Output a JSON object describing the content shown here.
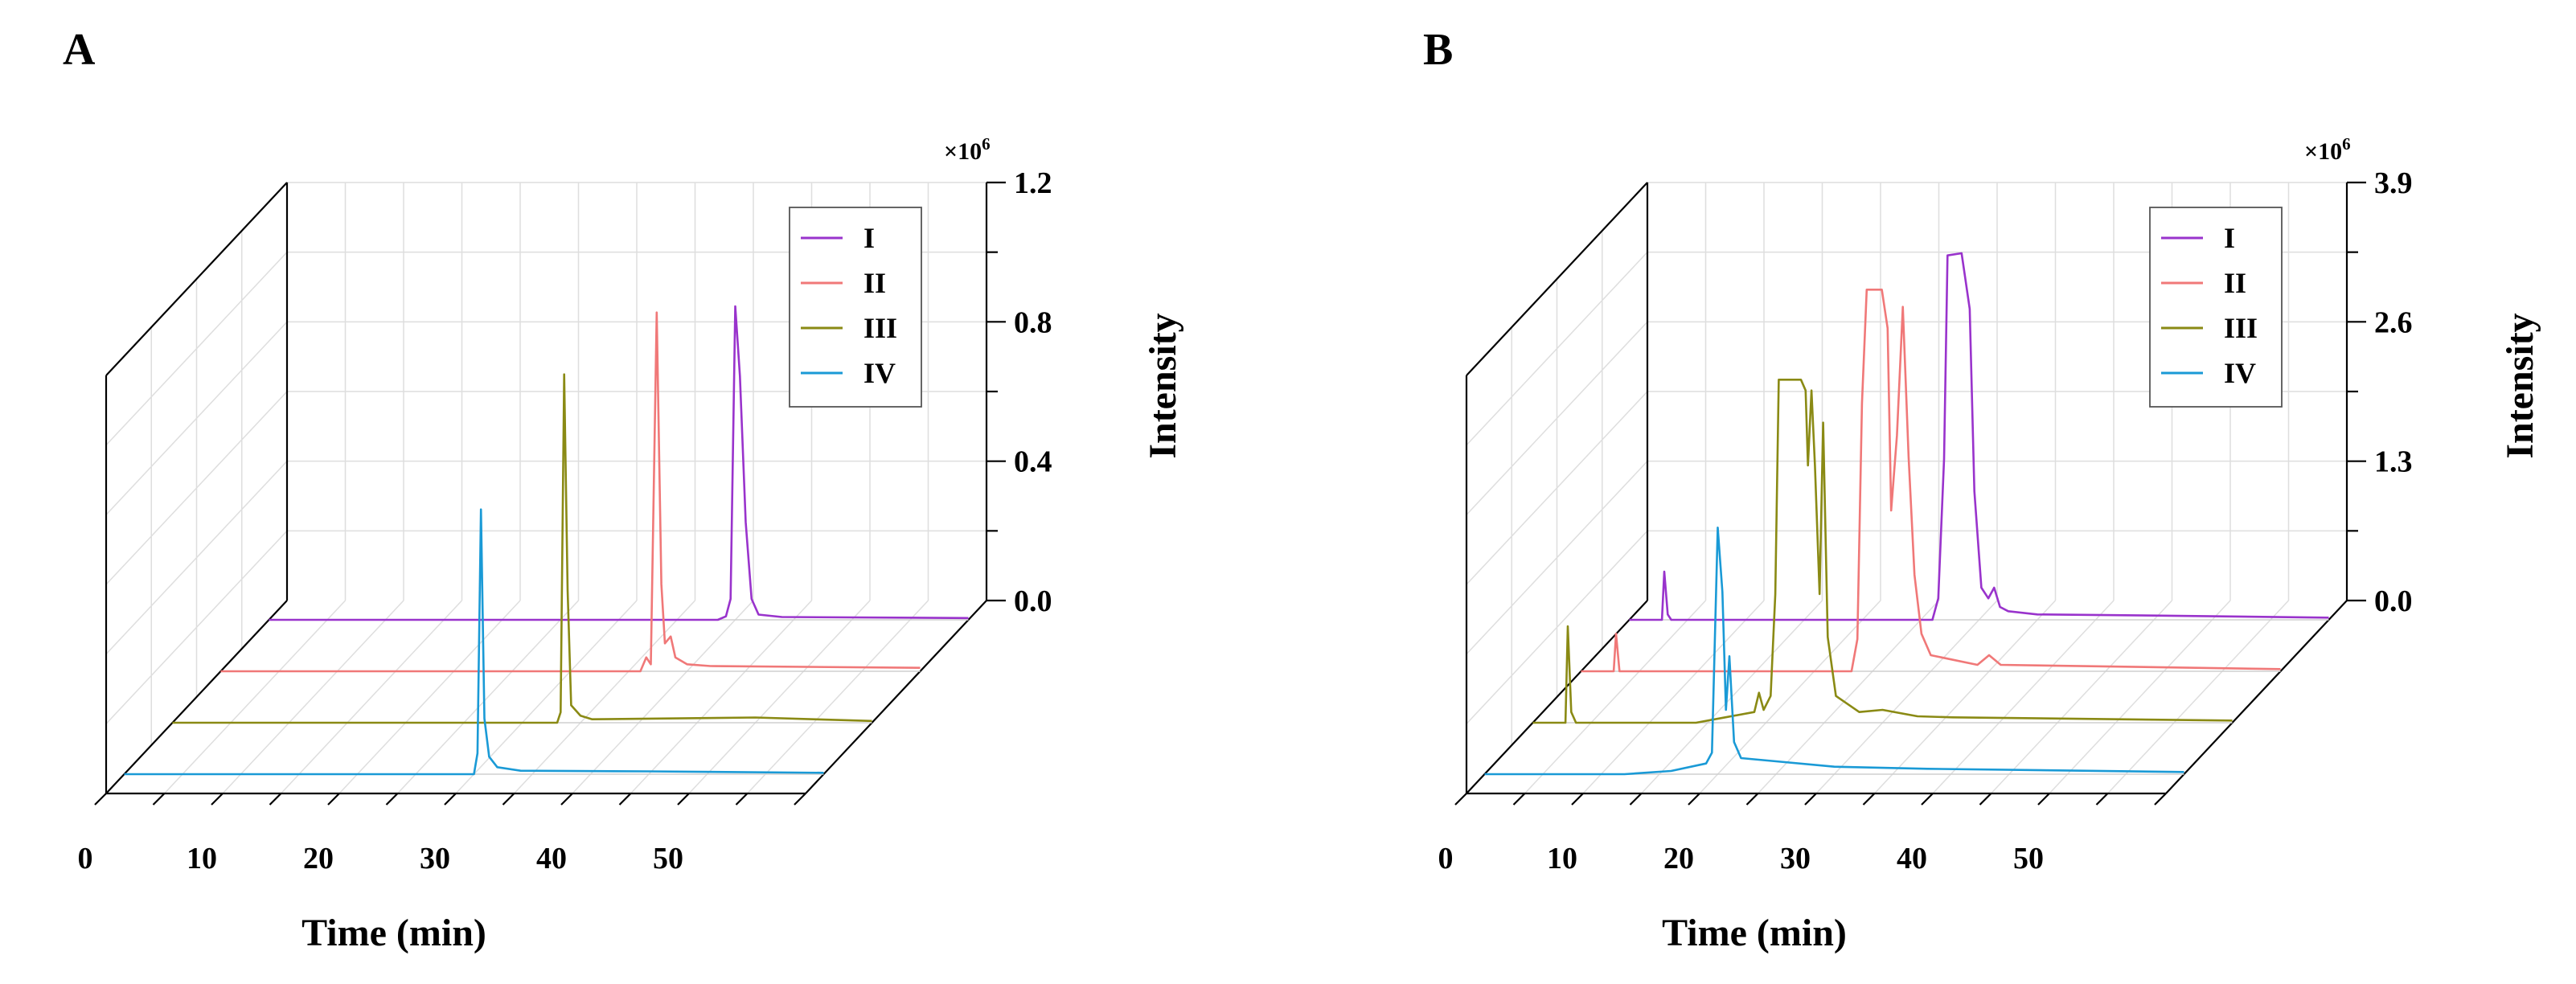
{
  "figure_caption": "",
  "chart_data": [
    {
      "panel": "A",
      "type": "line",
      "style": "3d-waterfall",
      "title": "",
      "xlabel": "Time (min)",
      "ylabel": "Intensity",
      "y_multiplier": "×10",
      "y_multiplier_exp": "6",
      "xlim": [
        0,
        60
      ],
      "ylim": [
        0,
        1.2
      ],
      "x_ticks": [
        "0",
        "10",
        "20",
        "30",
        "40",
        "50"
      ],
      "y_ticks": [
        "0.0",
        "0.4",
        "0.8",
        "1.2"
      ],
      "legend_position": "top-right",
      "series": [
        {
          "name": "I",
          "color": "#9933cc",
          "points": [
            [
              0,
              0
            ],
            [
              38.5,
              0
            ],
            [
              39.2,
              0.01
            ],
            [
              39.6,
              0.06
            ],
            [
              40.0,
              0.9
            ],
            [
              40.4,
              0.7
            ],
            [
              40.9,
              0.28
            ],
            [
              41.4,
              0.06
            ],
            [
              42,
              0.015
            ],
            [
              44,
              0.008
            ],
            [
              60,
              0.005
            ]
          ]
        },
        {
          "name": "II",
          "color": "#f07878",
          "points": [
            [
              0,
              0
            ],
            [
              36,
              0
            ],
            [
              36.5,
              0.04
            ],
            [
              36.9,
              0.02
            ],
            [
              37.4,
              1.03
            ],
            [
              37.8,
              0.25
            ],
            [
              38.1,
              0.08
            ],
            [
              38.6,
              0.1
            ],
            [
              39,
              0.04
            ],
            [
              40,
              0.02
            ],
            [
              42,
              0.015
            ],
            [
              60,
              0.01
            ]
          ]
        },
        {
          "name": "III",
          "color": "#8a8a14",
          "points": [
            [
              0,
              0
            ],
            [
              33,
              0
            ],
            [
              33.3,
              0.03
            ],
            [
              33.6,
              1.0
            ],
            [
              33.9,
              0.38
            ],
            [
              34.2,
              0.05
            ],
            [
              35,
              0.02
            ],
            [
              36,
              0.01
            ],
            [
              50,
              0.015
            ],
            [
              55,
              0.01
            ],
            [
              60,
              0.005
            ]
          ]
        },
        {
          "name": "IV",
          "color": "#1a9ad6",
          "points": [
            [
              0,
              0
            ],
            [
              30,
              0
            ],
            [
              30.3,
              0.06
            ],
            [
              30.6,
              0.76
            ],
            [
              30.9,
              0.16
            ],
            [
              31.3,
              0.05
            ],
            [
              32,
              0.02
            ],
            [
              34,
              0.01
            ],
            [
              45,
              0.008
            ],
            [
              60,
              0.004
            ]
          ]
        }
      ]
    },
    {
      "panel": "B",
      "type": "line",
      "style": "3d-waterfall",
      "title": "",
      "xlabel": "Time (min)",
      "ylabel": "Intensity",
      "y_multiplier": "×10",
      "y_multiplier_exp": "6",
      "xlim": [
        0,
        60
      ],
      "ylim": [
        0,
        3.9
      ],
      "x_ticks": [
        "0",
        "10",
        "20",
        "30",
        "40",
        "50"
      ],
      "y_ticks": [
        "0.0",
        "1.3",
        "2.6",
        "3.9"
      ],
      "legend_position": "top-right",
      "series": [
        {
          "name": "I",
          "color": "#9933cc",
          "points": [
            [
              0,
              0
            ],
            [
              2.8,
              0
            ],
            [
              3.0,
              0.45
            ],
            [
              3.3,
              0.05
            ],
            [
              3.6,
              0
            ],
            [
              26,
              0
            ],
            [
              26.5,
              0.2
            ],
            [
              27,
              1.5
            ],
            [
              27.3,
              3.4
            ],
            [
              28.5,
              3.42
            ],
            [
              28.8,
              3.2
            ],
            [
              29.2,
              2.9
            ],
            [
              29.6,
              1.2
            ],
            [
              30.2,
              0.3
            ],
            [
              30.8,
              0.2
            ],
            [
              31.3,
              0.3
            ],
            [
              31.8,
              0.12
            ],
            [
              32.5,
              0.08
            ],
            [
              35,
              0.05
            ],
            [
              45,
              0.04
            ],
            [
              60,
              0.02
            ]
          ]
        },
        {
          "name": "II",
          "color": "#f07878",
          "points": [
            [
              0,
              0
            ],
            [
              2.8,
              0
            ],
            [
              3.0,
              0.35
            ],
            [
              3.3,
              0
            ],
            [
              23.2,
              0
            ],
            [
              23.7,
              0.3
            ],
            [
              24.1,
              2.5
            ],
            [
              24.5,
              3.56
            ],
            [
              25.8,
              3.56
            ],
            [
              26.3,
              3.2
            ],
            [
              26.6,
              1.5
            ],
            [
              27.1,
              2.2
            ],
            [
              27.6,
              3.4
            ],
            [
              28.1,
              2.0
            ],
            [
              28.6,
              0.9
            ],
            [
              29.2,
              0.35
            ],
            [
              30,
              0.15
            ],
            [
              34,
              0.06
            ],
            [
              35,
              0.15
            ],
            [
              36,
              0.06
            ],
            [
              60,
              0.02
            ]
          ]
        },
        {
          "name": "III",
          "color": "#8a8a14",
          "points": [
            [
              0,
              0
            ],
            [
              2.8,
              0
            ],
            [
              3.0,
              0.9
            ],
            [
              3.3,
              0.1
            ],
            [
              3.7,
              0
            ],
            [
              14,
              0
            ],
            [
              16.5,
              0.05
            ],
            [
              19,
              0.1
            ],
            [
              19.4,
              0.28
            ],
            [
              19.8,
              0.12
            ],
            [
              20.4,
              0.25
            ],
            [
              20.8,
              1.2
            ],
            [
              21.1,
              3.2
            ],
            [
              23.0,
              3.2
            ],
            [
              23.4,
              3.1
            ],
            [
              23.6,
              2.4
            ],
            [
              23.9,
              3.1
            ],
            [
              24.2,
              2.4
            ],
            [
              24.6,
              1.2
            ],
            [
              24.9,
              2.8
            ],
            [
              25.3,
              0.8
            ],
            [
              26,
              0.25
            ],
            [
              28,
              0.1
            ],
            [
              30,
              0.12
            ],
            [
              33,
              0.06
            ],
            [
              36,
              0.05
            ],
            [
              60,
              0.02
            ]
          ]
        },
        {
          "name": "IV",
          "color": "#1a9ad6",
          "points": [
            [
              0,
              0
            ],
            [
              12,
              0
            ],
            [
              16,
              0.03
            ],
            [
              19,
              0.1
            ],
            [
              19.5,
              0.2
            ],
            [
              20.0,
              2.3
            ],
            [
              20.4,
              1.7
            ],
            [
              20.7,
              0.6
            ],
            [
              21.0,
              1.1
            ],
            [
              21.4,
              0.3
            ],
            [
              22,
              0.15
            ],
            [
              25,
              0.12
            ],
            [
              30,
              0.07
            ],
            [
              38,
              0.05
            ],
            [
              60,
              0.02
            ]
          ]
        }
      ]
    }
  ]
}
